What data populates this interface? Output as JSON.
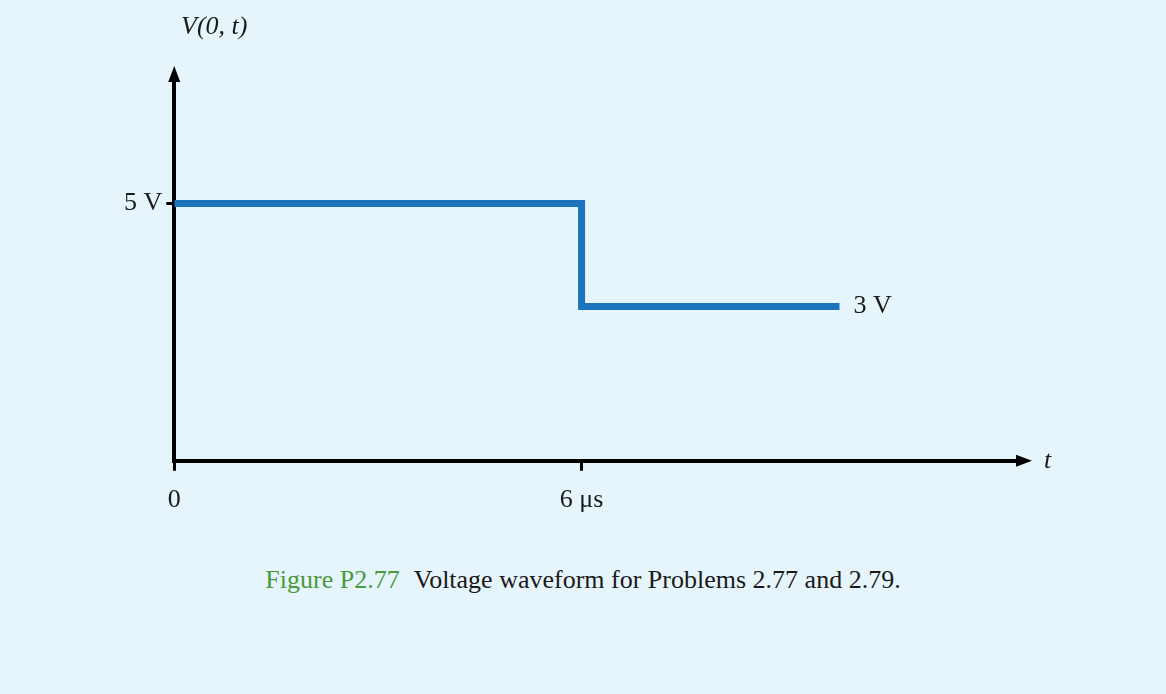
{
  "chart_data": {
    "type": "line",
    "figure_label": "Figure P2.77",
    "title": "Voltage waveform for Problems 2.77 and 2.79.",
    "x_label": "t",
    "y_label": "V(0, t)",
    "x": [
      0,
      6,
      6,
      9.8
    ],
    "values": [
      5,
      5,
      3,
      3
    ],
    "color": "#1b75bc",
    "xlim": [
      0,
      12.4
    ],
    "ylim": [
      0,
      7.4
    ],
    "xticks": [
      0,
      {
        "value": 6,
        "label": "6 μs"
      }
    ],
    "yticks": [
      {
        "value": 5,
        "label": "5 V"
      }
    ],
    "grid": false,
    "annotations": [
      {
        "text": "3 V",
        "x": 9.8,
        "y": 3
      }
    ]
  }
}
